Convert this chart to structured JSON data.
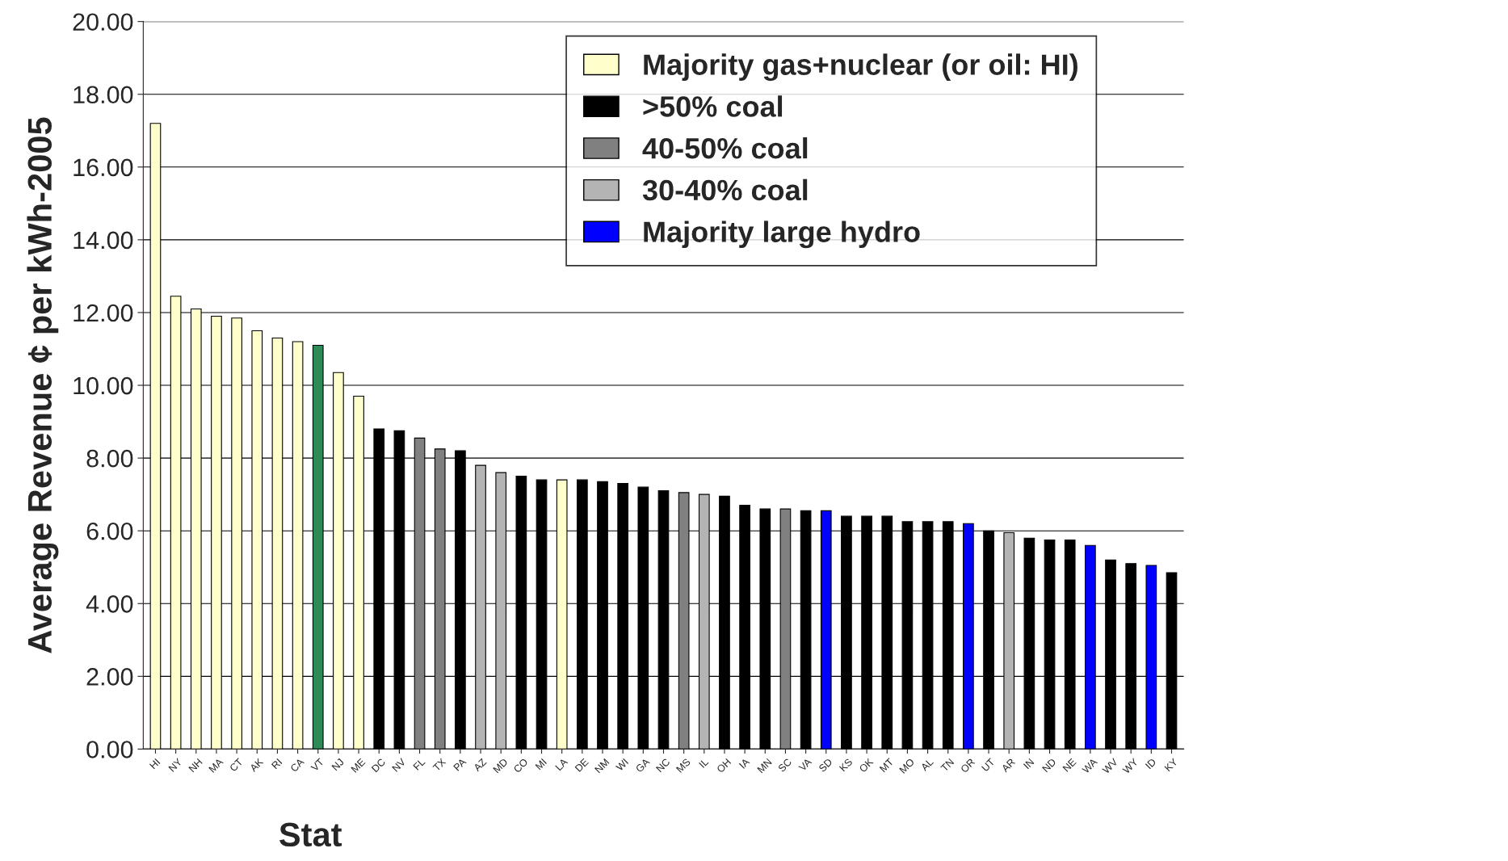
{
  "chart_data": {
    "type": "bar",
    "xlabel": "Stat",
    "ylabel": "Average Revenue ¢ per kWh-2005",
    "categories": [
      "HI",
      "NY",
      "NH",
      "MA",
      "CT",
      "AK",
      "RI",
      "CA",
      "VT",
      "NJ",
      "ME",
      "DC",
      "NV",
      "FL",
      "TX",
      "PA",
      "AZ",
      "MD",
      "CO",
      "MI",
      "LA",
      "DE",
      "NM",
      "WI",
      "GA",
      "NC",
      "MS",
      "IL",
      "OH",
      "IA",
      "MN",
      "SC",
      "VA",
      "SD",
      "KS",
      "OK",
      "MT",
      "MO",
      "AL",
      "TN",
      "OR",
      "UT",
      "AR",
      "IN",
      "ND",
      "NE",
      "WA",
      "WV",
      "WY",
      "ID",
      "KY"
    ],
    "series": [
      {
        "name": "Majority gas+nuclear (or oil: HI)",
        "color": "#ffffcc",
        "values": [
          17.2,
          12.45,
          12.1,
          11.9,
          11.85,
          11.5,
          11.3,
          11.2,
          null,
          10.35,
          9.7,
          null,
          null,
          null,
          null,
          null,
          null,
          null,
          null,
          null,
          7.4,
          null,
          null,
          null,
          null,
          null,
          null,
          null,
          null,
          null,
          null,
          null,
          null,
          null,
          null,
          null,
          null,
          null,
          null,
          null,
          null,
          null,
          null,
          null,
          null,
          null,
          null,
          null,
          null,
          null,
          null
        ]
      },
      {
        "name": ">50% coal",
        "color": "#000000",
        "values": [
          null,
          null,
          null,
          null,
          null,
          null,
          null,
          null,
          null,
          null,
          null,
          8.8,
          8.75,
          null,
          null,
          8.2,
          null,
          null,
          7.5,
          7.4,
          null,
          7.4,
          7.35,
          7.3,
          7.2,
          7.1,
          null,
          null,
          6.95,
          6.7,
          6.6,
          null,
          6.55,
          null,
          6.4,
          6.4,
          6.4,
          6.25,
          6.25,
          6.25,
          null,
          6.0,
          null,
          5.8,
          5.75,
          5.75,
          null,
          5.2,
          5.1,
          null,
          4.85
        ]
      },
      {
        "name": "40-50% coal",
        "color": "#808080",
        "values": [
          null,
          null,
          null,
          null,
          null,
          null,
          null,
          null,
          null,
          null,
          null,
          null,
          null,
          8.55,
          8.25,
          null,
          null,
          null,
          null,
          null,
          null,
          null,
          null,
          null,
          null,
          null,
          7.05,
          null,
          null,
          null,
          null,
          6.6,
          null,
          null,
          null,
          null,
          null,
          null,
          null,
          null,
          null,
          null,
          null,
          null,
          null,
          null,
          null,
          null,
          null,
          null,
          null
        ]
      },
      {
        "name": "30-40% coal",
        "color": "#b4b4b4",
        "values": [
          null,
          null,
          null,
          null,
          null,
          null,
          null,
          null,
          null,
          null,
          null,
          null,
          null,
          null,
          null,
          null,
          7.8,
          7.6,
          null,
          null,
          null,
          null,
          null,
          null,
          null,
          null,
          null,
          7.0,
          null,
          null,
          null,
          null,
          null,
          null,
          null,
          null,
          null,
          null,
          null,
          null,
          null,
          null,
          5.95,
          null,
          null,
          null,
          null,
          null,
          null,
          null,
          null
        ]
      },
      {
        "name": "Majority large hydro",
        "color": "#0000ff",
        "values": [
          null,
          null,
          null,
          null,
          null,
          null,
          null,
          null,
          null,
          null,
          null,
          null,
          null,
          null,
          null,
          null,
          null,
          null,
          null,
          null,
          null,
          null,
          null,
          null,
          null,
          null,
          null,
          null,
          null,
          null,
          null,
          null,
          null,
          6.55,
          null,
          null,
          null,
          null,
          null,
          null,
          6.2,
          null,
          null,
          null,
          null,
          null,
          5.6,
          null,
          null,
          5.05,
          null
        ]
      },
      {
        "color": "#2e8b57",
        "values": [
          null,
          null,
          null,
          null,
          null,
          null,
          null,
          null,
          11.1,
          null,
          null,
          null,
          null,
          null,
          null,
          null,
          null,
          null,
          null,
          null,
          null,
          null,
          null,
          null,
          null,
          null,
          null,
          null,
          null,
          null,
          null,
          null,
          null,
          null,
          null,
          null,
          null,
          null,
          null,
          null,
          null,
          null,
          null,
          null,
          null,
          null,
          null,
          null,
          null,
          null,
          null
        ]
      }
    ],
    "ylim": [
      0,
      20
    ],
    "yticks": [
      {
        "value": 0,
        "label": "0.00"
      },
      {
        "value": 2,
        "label": "2.00"
      },
      {
        "value": 4,
        "label": "4.00"
      },
      {
        "value": 6,
        "label": "6.00"
      },
      {
        "value": 8,
        "label": "8.00"
      },
      {
        "value": 10,
        "label": "10.00"
      },
      {
        "value": 12,
        "label": "12.00"
      },
      {
        "value": 14,
        "label": "14.00"
      },
      {
        "value": 16,
        "label": "16.00"
      },
      {
        "value": 18,
        "label": "18.00"
      },
      {
        "value": 20,
        "label": "20.00"
      }
    ],
    "grid": "y",
    "legend": "top right"
  }
}
